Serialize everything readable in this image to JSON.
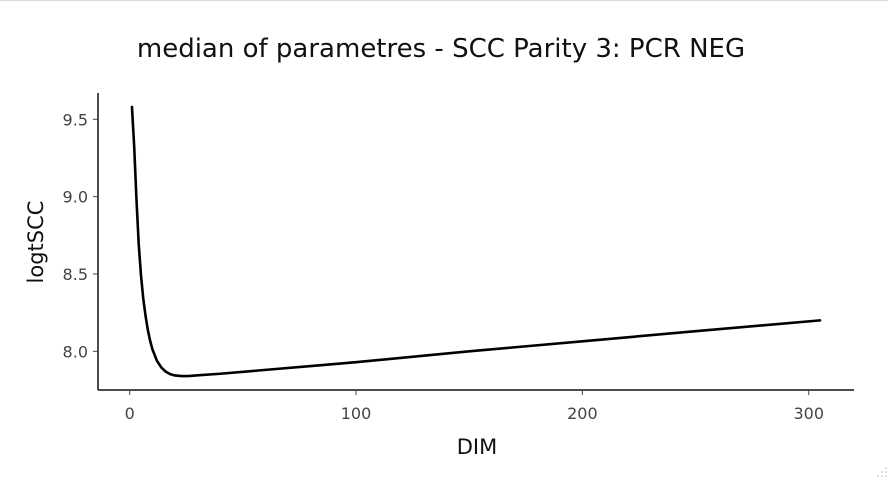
{
  "chart_data": {
    "type": "line",
    "title": "median of parametres - SCC Parity 3: PCR NEG",
    "xlabel": "DIM",
    "ylabel": "logtSCC",
    "xlim": [
      -14,
      320
    ],
    "ylim": [
      7.75,
      9.67
    ],
    "xticks": [
      0,
      100,
      200,
      300
    ],
    "xtick_labels": [
      "0",
      "100",
      "200",
      "300"
    ],
    "yticks": [
      8.0,
      8.5,
      9.0,
      9.5
    ],
    "ytick_labels": [
      "8.0",
      "8.5",
      "9.0",
      "9.5"
    ],
    "grid": false,
    "legend": "none",
    "series": [
      {
        "x": [
          1,
          2,
          3,
          4,
          5,
          6,
          7,
          8,
          9,
          10,
          12,
          14,
          16,
          18,
          20,
          23,
          26,
          30,
          40,
          60,
          80,
          100,
          150,
          200,
          250,
          305
        ],
        "y": [
          9.58,
          9.32,
          8.98,
          8.69,
          8.49,
          8.34,
          8.23,
          8.14,
          8.07,
          8.015,
          7.94,
          7.895,
          7.868,
          7.852,
          7.844,
          7.84,
          7.84,
          7.845,
          7.855,
          7.88,
          7.905,
          7.93,
          8.0,
          8.065,
          8.13,
          8.2
        ],
        "color": "#000000"
      }
    ]
  }
}
